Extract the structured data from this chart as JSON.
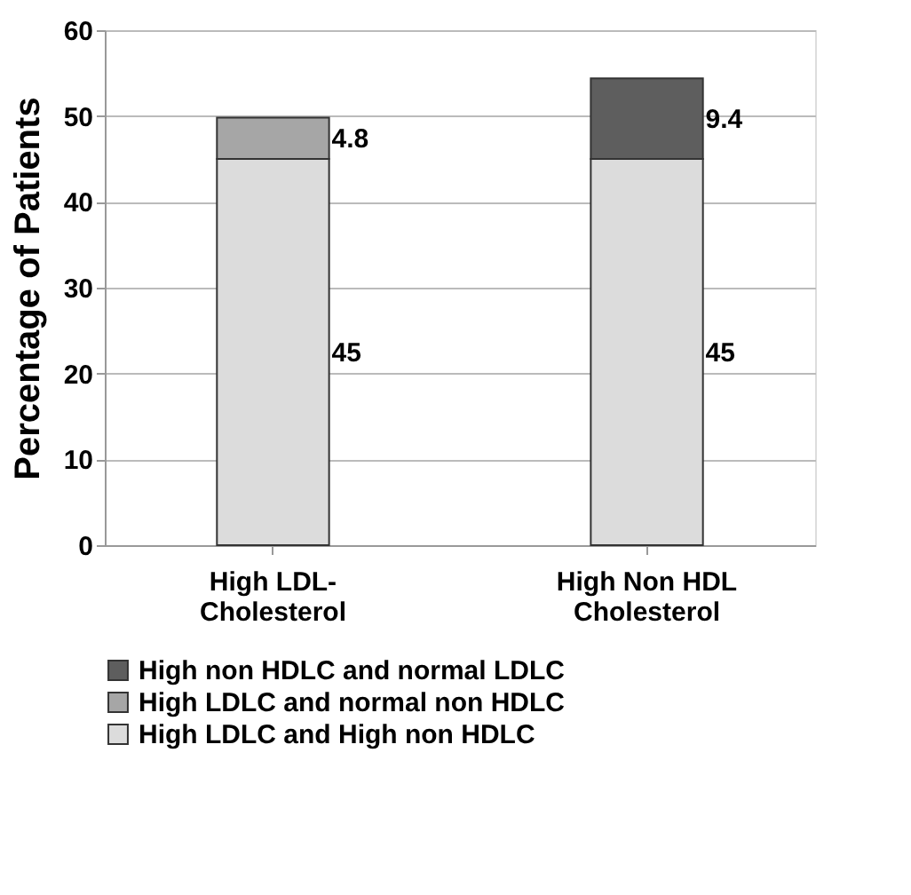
{
  "chart_data": {
    "type": "bar",
    "stacked": true,
    "ylabel": "Percentage of Patients",
    "categories": [
      "High LDL-\nCholesterol",
      "High Non HDL\nCholesterol"
    ],
    "series": [
      {
        "name": "High LDLC and High non HDLC",
        "color": "#dcdcdc",
        "values": [
          45,
          45
        ]
      },
      {
        "name": "High LDLC and normal non HDLC",
        "color": "#a6a6a6",
        "values": [
          4.8,
          null
        ]
      },
      {
        "name": "High non HDLC and normal LDLC",
        "color": "#5e5e5e",
        "values": [
          null,
          9.4
        ]
      }
    ],
    "ylim": [
      0,
      60
    ],
    "yticks": [
      0,
      10,
      20,
      30,
      40,
      50,
      60
    ],
    "grid": "y",
    "legend": "bottom",
    "data_labels": true
  }
}
